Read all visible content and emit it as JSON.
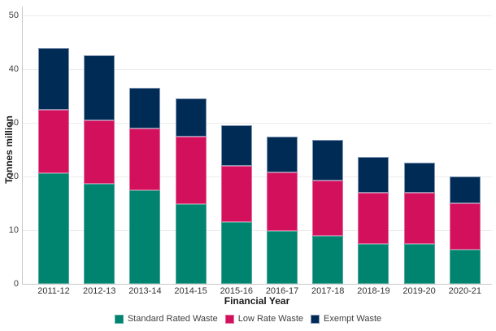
{
  "chart_data": {
    "type": "bar",
    "stacked": true,
    "title": "",
    "xlabel": "Financial Year",
    "ylabel": "Tonnes million",
    "ylim": [
      0,
      50
    ],
    "yticks": [
      0,
      10,
      20,
      30,
      40,
      50
    ],
    "grid": "horizontal",
    "legend_position": "bottom",
    "categories": [
      "2011-12",
      "2012-13",
      "2013-14",
      "2014-15",
      "2015-16",
      "2016-17",
      "2017-18",
      "2018-19",
      "2019-20",
      "2020-21"
    ],
    "series": [
      {
        "name": "Standard Rated Waste",
        "color": "#00846f",
        "border_color": "#4fa79a",
        "values": [
          20.6,
          18.7,
          17.4,
          14.8,
          11.5,
          9.8,
          8.9,
          7.4,
          7.4,
          6.3
        ]
      },
      {
        "name": "Low Rate Waste",
        "color": "#d3105c",
        "border_color": "#e06c9b",
        "values": [
          11.8,
          11.8,
          11.5,
          12.7,
          10.5,
          10.9,
          10.3,
          9.6,
          9.5,
          8.7
        ]
      },
      {
        "name": "Exempt Waste",
        "color": "#002b54",
        "border_color": "#8296b3",
        "values": [
          11.6,
          12.1,
          7.6,
          7.0,
          7.6,
          6.7,
          7.6,
          6.7,
          5.7,
          5.0
        ]
      }
    ],
    "totals": [
      44.0,
      42.6,
      36.5,
      34.5,
      29.6,
      27.4,
      26.8,
      23.7,
      22.6,
      20.0
    ],
    "colors": {
      "background": "#ffffff",
      "gridline": "#ececec",
      "axis_line": "#c9c9c9",
      "tick_label": "#404040",
      "axis_title": "#1a1a1a"
    }
  }
}
